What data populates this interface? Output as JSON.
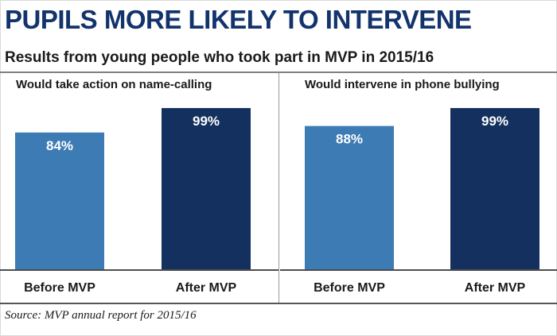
{
  "title": "PUPILS MORE LIKELY TO INTERVENE",
  "subtitle": "Results from young people who took part in MVP in 2015/16",
  "source": "Source: MVP annual report for 2015/16",
  "colors": {
    "before": "#3c7bb3",
    "after": "#14305e",
    "title": "#12336b"
  },
  "chart_data": [
    {
      "type": "bar",
      "title": "Would take action on name-calling",
      "categories": [
        "Before MVP",
        "After MVP"
      ],
      "values": [
        84,
        99
      ],
      "value_labels": [
        "84%",
        "99%"
      ],
      "ylim": [
        0,
        100
      ],
      "grid": false
    },
    {
      "type": "bar",
      "title": "Would intervene in phone bullying",
      "categories": [
        "Before MVP",
        "After MVP"
      ],
      "values": [
        88,
        99
      ],
      "value_labels": [
        "88%",
        "99%"
      ],
      "ylim": [
        0,
        100
      ],
      "grid": false
    }
  ]
}
